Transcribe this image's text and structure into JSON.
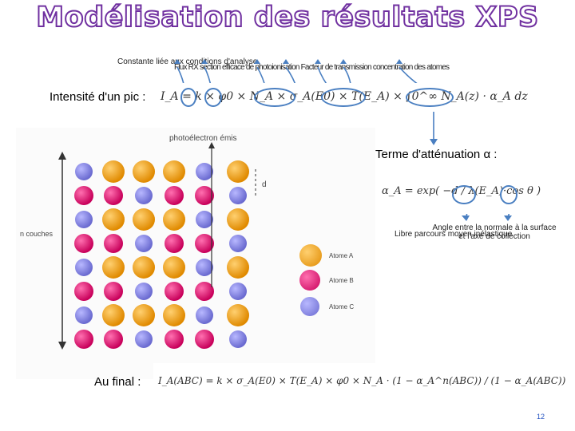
{
  "title": "Modélisation des résultats XPS",
  "annotations": {
    "constante": "Constante liée aux conditions d'analyse",
    "overlap": "Flux RX section efficace de photoionisation Facteur de transmission concentration des atomes"
  },
  "intensite": {
    "label": "Intensité d'un pic :",
    "formula": "I_A = k × φ0 × N_A × σ_A(E0) × T(E_A) × ∫0^∞ N_A(z) · α_A dz"
  },
  "attenuation": {
    "label": "Terme d'atténuation α :",
    "formula": "α_A = exp( −d / λ(E_A)·cos θ )",
    "angle_note": "Angle entre la normale à la surface et l'axe de collection",
    "libre_note": "Libre parcours moyen inélastique"
  },
  "figure": {
    "photoelectron_label": "photoélectron émis",
    "n_couches_label": "n couches",
    "d_label": "d",
    "legend": [
      {
        "label": "Atome A",
        "color": "#f0a020"
      },
      {
        "label": "Atome B",
        "color": "#e0207a"
      },
      {
        "label": "Atome C",
        "color": "#8a8ae0"
      }
    ]
  },
  "final": {
    "label": "Au final :",
    "formula": "I_A(ABC) = k × σ_A(E0) × T(E_A) × φ0 × N_A · (1 − α_A^n(ABC)) / (1 − α_A(ABC))"
  },
  "page_number": "12"
}
